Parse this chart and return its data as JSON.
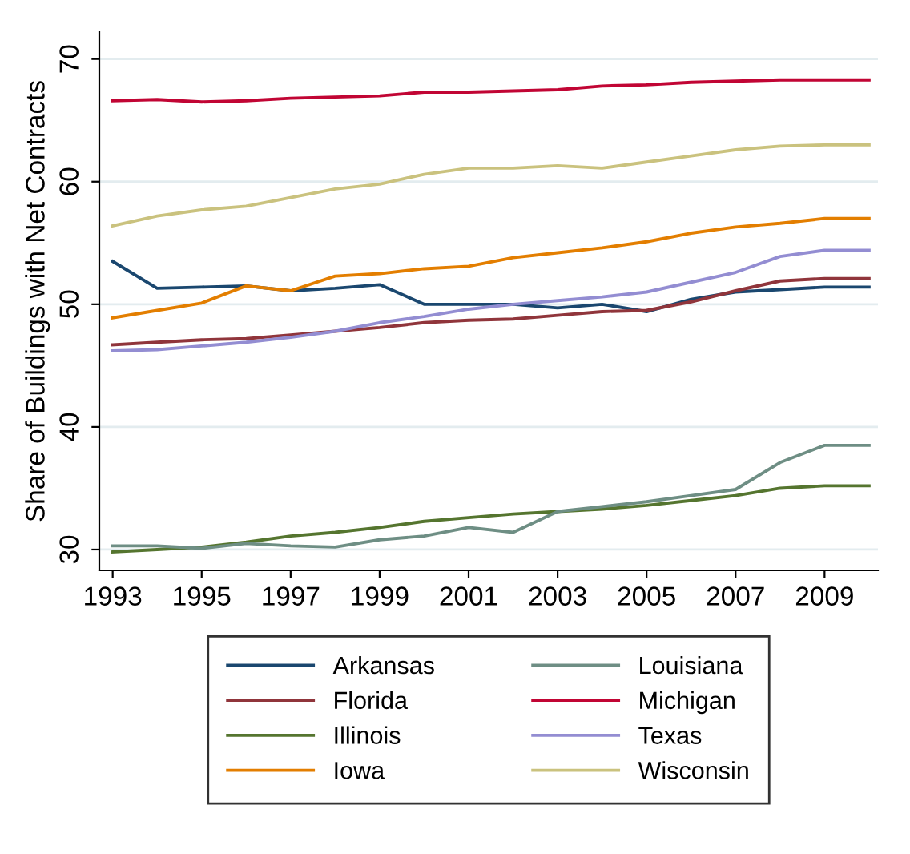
{
  "chart_data": {
    "type": "line",
    "ylabel": "Share of Buildings with Net Contracts",
    "x": [
      1993,
      1994,
      1995,
      1996,
      1997,
      1998,
      1999,
      2000,
      2001,
      2002,
      2003,
      2004,
      2005,
      2006,
      2007,
      2008,
      2009,
      2010
    ],
    "xlim": [
      1992.7,
      2010.2
    ],
    "xticks": [
      1993,
      1995,
      1997,
      1999,
      2001,
      2003,
      2005,
      2007,
      2009
    ],
    "ylim": [
      28.3,
      72.2
    ],
    "yticks": [
      30,
      40,
      50,
      60,
      70
    ],
    "grid": "y",
    "legend": "bottom",
    "marker": "none",
    "line_style": "solid",
    "series": [
      {
        "name": "Arkansas",
        "color": "#1a476f",
        "values": [
          53.5,
          51.3,
          51.4,
          51.5,
          51.1,
          51.3,
          51.6,
          50.0,
          50.0,
          50.0,
          49.7,
          50.0,
          49.4,
          50.4,
          51.0,
          51.2,
          51.4,
          51.4
        ]
      },
      {
        "name": "Florida",
        "color": "#90353b",
        "values": [
          46.7,
          46.9,
          47.1,
          47.2,
          47.5,
          47.8,
          48.1,
          48.5,
          48.7,
          48.8,
          49.1,
          49.4,
          49.5,
          50.2,
          51.1,
          51.9,
          52.1,
          52.1
        ]
      },
      {
        "name": "Illinois",
        "color": "#55752f",
        "values": [
          29.8,
          30.0,
          30.2,
          30.6,
          31.1,
          31.4,
          31.8,
          32.3,
          32.6,
          32.9,
          33.1,
          33.3,
          33.6,
          34.0,
          34.4,
          35.0,
          35.2,
          35.2
        ]
      },
      {
        "name": "Iowa",
        "color": "#e37e00",
        "values": [
          48.9,
          49.5,
          50.1,
          51.5,
          51.1,
          52.3,
          52.5,
          52.9,
          53.1,
          53.8,
          54.2,
          54.6,
          55.1,
          55.8,
          56.3,
          56.6,
          57.0,
          57.0
        ]
      },
      {
        "name": "Louisiana",
        "color": "#6e8e84",
        "values": [
          30.3,
          30.3,
          30.1,
          30.5,
          30.3,
          30.2,
          30.8,
          31.1,
          31.8,
          31.4,
          33.1,
          33.5,
          33.9,
          34.4,
          34.9,
          37.1,
          38.5,
          38.5
        ]
      },
      {
        "name": "Michigan",
        "color": "#c10534",
        "values": [
          66.6,
          66.7,
          66.5,
          66.6,
          66.8,
          66.9,
          67.0,
          67.3,
          67.3,
          67.4,
          67.5,
          67.8,
          67.9,
          68.1,
          68.2,
          68.3,
          68.3,
          68.3
        ]
      },
      {
        "name": "Texas",
        "color": "#938dd2",
        "values": [
          46.2,
          46.3,
          46.6,
          46.9,
          47.3,
          47.8,
          48.5,
          49.0,
          49.6,
          50.0,
          50.3,
          50.6,
          51.0,
          51.8,
          52.6,
          53.9,
          54.4,
          54.4
        ]
      },
      {
        "name": "Wisconsin",
        "color": "#cac27e",
        "values": [
          56.4,
          57.2,
          57.7,
          58.0,
          58.7,
          59.4,
          59.8,
          60.6,
          61.1,
          61.1,
          61.3,
          61.1,
          61.6,
          62.1,
          62.6,
          62.9,
          63.0,
          63.0
        ]
      }
    ]
  }
}
